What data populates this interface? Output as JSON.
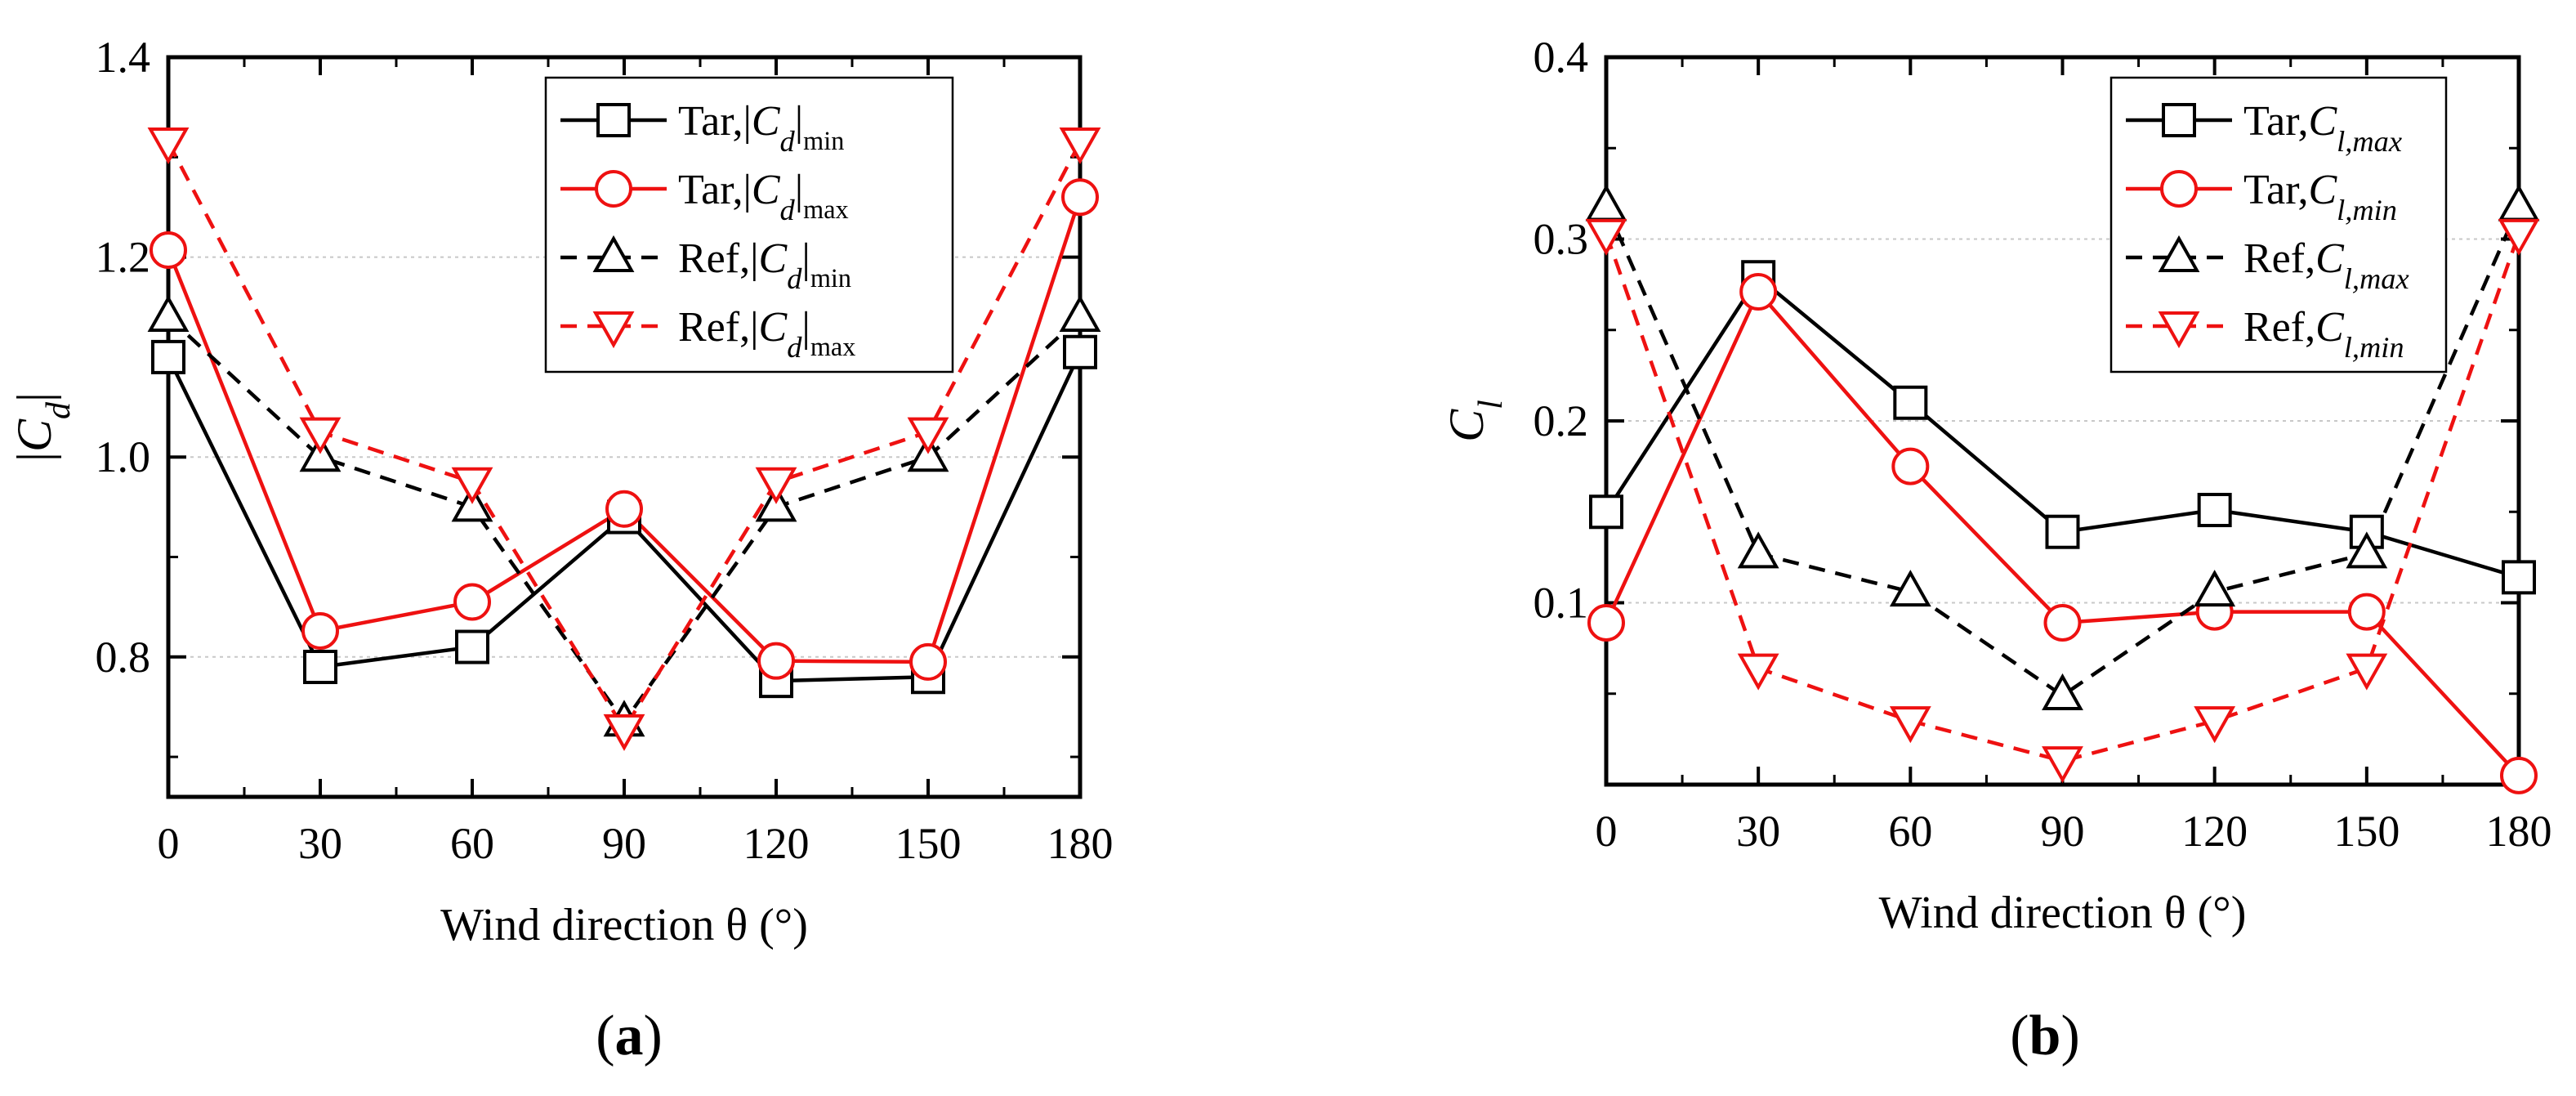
{
  "panels": [
    {
      "label_open": "(",
      "label": "a",
      "label_close": ")"
    },
    {
      "label_open": "(",
      "label": "b",
      "label_close": ")"
    }
  ],
  "chart_data": [
    {
      "type": "line",
      "panel": "a",
      "xlabel": "Wind direction θ (°)",
      "ylabel": "|Cd|",
      "ylabel_parts": {
        "bar_open": "|",
        "symbol": "C",
        "sub": "d",
        "bar_close": "|"
      },
      "xlim": [
        0,
        180
      ],
      "ylim": [
        0.66,
        1.4
      ],
      "xticks": [
        0,
        30,
        60,
        90,
        120,
        150,
        180
      ],
      "yticks": [
        0.8,
        1.0,
        1.2,
        1.4
      ],
      "yticks_minor": [
        0.7,
        0.9,
        1.1,
        1.3
      ],
      "grid": "horizontal-dotted",
      "legend_position": "top-right",
      "x": [
        0,
        30,
        60,
        90,
        120,
        150,
        180
      ],
      "series": [
        {
          "name": "Tar,|Cd|min",
          "label_parts": {
            "prefix": "Tar,|",
            "symbol": "C",
            "sub": "d",
            "bar": "|",
            "subscript": "min"
          },
          "color": "#000000",
          "dash": "solid",
          "marker": "square",
          "values": [
            1.1,
            0.79,
            0.81,
            0.94,
            0.776,
            0.78,
            1.105
          ]
        },
        {
          "name": "Tar,|Cd|max",
          "label_parts": {
            "prefix": "Tar,|",
            "symbol": "C",
            "sub": "d",
            "bar": "|",
            "subscript": "max"
          },
          "color": "#ee1111",
          "dash": "solid",
          "marker": "circle",
          "values": [
            1.207,
            0.826,
            0.855,
            0.948,
            0.796,
            0.795,
            1.26
          ]
        },
        {
          "name": "Ref,|Cd|min",
          "label_parts": {
            "prefix": "Ref,|",
            "symbol": "C",
            "sub": "d",
            "bar": "|",
            "subscript": "min"
          },
          "color": "#000000",
          "dash": "dashed",
          "marker": "triangle-up",
          "values": [
            1.14,
            1.0,
            0.95,
            0.735,
            0.95,
            1.0,
            1.14
          ]
        },
        {
          "name": "Ref,|Cd|max",
          "label_parts": {
            "prefix": "Ref,|",
            "symbol": "C",
            "sub": "d",
            "bar": "|",
            "subscript": "max"
          },
          "color": "#ee1111",
          "dash": "dashed",
          "marker": "triangle-down",
          "values": [
            1.315,
            1.025,
            0.975,
            0.728,
            0.975,
            1.025,
            1.315
          ]
        }
      ]
    },
    {
      "type": "line",
      "panel": "b",
      "xlabel": "Wind direction θ (°)",
      "ylabel": "Cl",
      "ylabel_parts": {
        "bar_open": "",
        "symbol": "C",
        "sub": "l",
        "bar_close": ""
      },
      "xlim": [
        0,
        180
      ],
      "ylim": [
        0.0,
        0.4
      ],
      "xticks": [
        0,
        30,
        60,
        90,
        120,
        150,
        180
      ],
      "yticks": [
        0.1,
        0.2,
        0.3,
        0.4
      ],
      "yticks_minor": [
        0.05,
        0.15,
        0.25,
        0.35
      ],
      "grid": "horizontal-dotted",
      "legend_position": "top-right",
      "x": [
        0,
        30,
        60,
        90,
        120,
        150,
        180
      ],
      "series": [
        {
          "name": "Tar,Cl,max",
          "label_parts": {
            "prefix": "Tar,",
            "symbol": "C",
            "sub": "l,max",
            "bar": "",
            "subscript": ""
          },
          "color": "#000000",
          "dash": "solid",
          "marker": "square",
          "values": [
            0.15,
            0.279,
            0.21,
            0.139,
            0.151,
            0.139,
            0.114
          ]
        },
        {
          "name": "Tar,Cl,min",
          "label_parts": {
            "prefix": "Tar,",
            "symbol": "C",
            "sub": "l,min",
            "bar": "",
            "subscript": ""
          },
          "color": "#ee1111",
          "dash": "solid",
          "marker": "circle",
          "values": [
            0.089,
            0.271,
            0.175,
            0.089,
            0.095,
            0.095,
            0.005
          ]
        },
        {
          "name": "Ref,Cl,max",
          "label_parts": {
            "prefix": "Ref,",
            "symbol": "C",
            "sub": "l,max",
            "bar": "",
            "subscript": ""
          },
          "color": "#000000",
          "dash": "dashed",
          "marker": "triangle-up",
          "values": [
            0.318,
            0.127,
            0.106,
            0.049,
            0.106,
            0.127,
            0.318
          ]
        },
        {
          "name": "Ref,Cl,min",
          "label_parts": {
            "prefix": "Ref,",
            "symbol": "C",
            "sub": "l,min",
            "bar": "",
            "subscript": ""
          },
          "color": "#ee1111",
          "dash": "dashed",
          "marker": "triangle-down",
          "values": [
            0.303,
            0.064,
            0.035,
            0.013,
            0.035,
            0.064,
            0.303
          ]
        }
      ]
    }
  ]
}
